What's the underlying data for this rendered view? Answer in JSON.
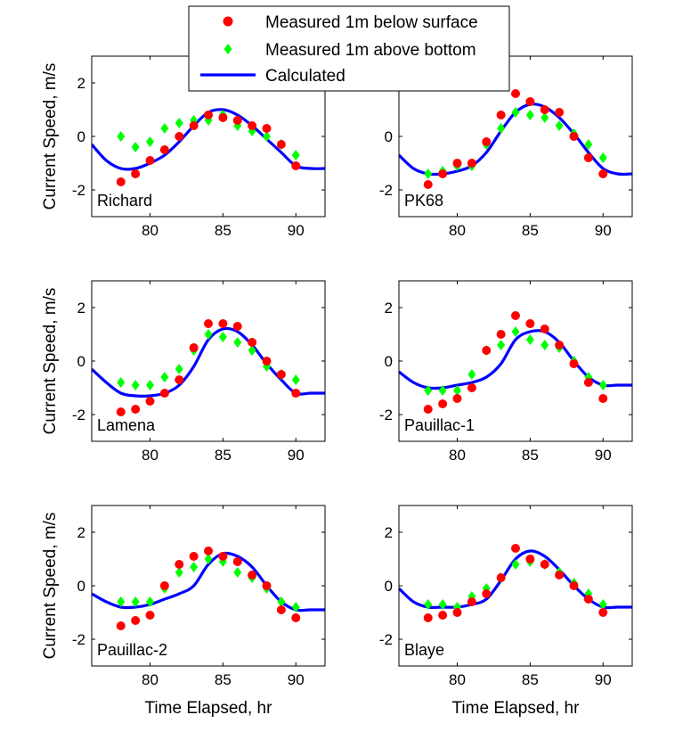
{
  "legend": {
    "placement": "top-center",
    "entries": [
      {
        "label": "Measured 1m below surface",
        "marker": "circle",
        "color": "#ff0000"
      },
      {
        "label": "Measured 1m above bottom",
        "marker": "diamond",
        "color": "#00ff00"
      },
      {
        "label": "Calculated",
        "marker": "line",
        "color": "#0000ff"
      }
    ]
  },
  "chart_data": [
    {
      "type": "scatter",
      "station": "Richard",
      "xlabel": "",
      "ylabel": "Current Speed, m/s",
      "xlim": [
        76,
        92
      ],
      "ylim": [
        -3,
        3
      ],
      "xticks": [
        80,
        85,
        90
      ],
      "yticks": [
        -2,
        0,
        2
      ],
      "series": [
        {
          "name": "Measured 1m below surface",
          "x": [
            78,
            79,
            80,
            81,
            82,
            83,
            84,
            85,
            86,
            87,
            88,
            89,
            90
          ],
          "y": [
            -1.7,
            -1.4,
            -0.9,
            -0.5,
            0.0,
            0.4,
            0.8,
            0.7,
            0.6,
            0.4,
            0.3,
            -0.3,
            -1.1
          ]
        },
        {
          "name": "Measured 1m above bottom",
          "x": [
            78,
            79,
            80,
            81,
            82,
            83,
            84,
            85,
            86,
            87,
            88,
            89,
            90
          ],
          "y": [
            0.0,
            -0.4,
            -0.2,
            0.3,
            0.5,
            0.6,
            0.6,
            0.8,
            0.4,
            0.2,
            0.0,
            -0.3,
            -0.7
          ]
        },
        {
          "name": "Calculated",
          "x": [
            76,
            77,
            78,
            79,
            80,
            81,
            82,
            83,
            84,
            85,
            86,
            87,
            88,
            89,
            90,
            91,
            92
          ],
          "y": [
            -0.3,
            -0.9,
            -1.2,
            -1.2,
            -1.0,
            -0.7,
            -0.2,
            0.4,
            0.9,
            1.0,
            0.8,
            0.4,
            -0.1,
            -0.6,
            -1.1,
            -1.2,
            -1.2
          ]
        }
      ]
    },
    {
      "type": "scatter",
      "station": "PK68",
      "xlabel": "",
      "ylabel": "",
      "xlim": [
        76,
        92
      ],
      "ylim": [
        -3,
        3
      ],
      "xticks": [
        80,
        85,
        90
      ],
      "yticks": [
        -2,
        0
      ],
      "series": [
        {
          "name": "Measured 1m below surface",
          "x": [
            78,
            79,
            80,
            81,
            82,
            83,
            84,
            85,
            86,
            87,
            88,
            89,
            90
          ],
          "y": [
            -1.8,
            -1.4,
            -1.0,
            -1.0,
            -0.2,
            0.8,
            1.6,
            1.3,
            1.0,
            0.9,
            0.0,
            -0.8,
            -1.4
          ]
        },
        {
          "name": "Measured 1m above bottom",
          "x": [
            78,
            79,
            80,
            81,
            82,
            83,
            84,
            85,
            86,
            87,
            88,
            89,
            90
          ],
          "y": [
            -1.4,
            -1.3,
            -1.1,
            -1.1,
            -0.3,
            0.3,
            0.9,
            0.8,
            0.7,
            0.4,
            0.1,
            -0.3,
            -0.8
          ]
        },
        {
          "name": "Calculated",
          "x": [
            76,
            77,
            78,
            79,
            80,
            81,
            82,
            83,
            84,
            85,
            86,
            87,
            88,
            89,
            90,
            91,
            92
          ],
          "y": [
            -0.7,
            -1.2,
            -1.4,
            -1.4,
            -1.3,
            -1.1,
            -0.6,
            0.2,
            0.9,
            1.2,
            1.1,
            0.7,
            0.1,
            -0.6,
            -1.2,
            -1.4,
            -1.4
          ]
        }
      ]
    },
    {
      "type": "scatter",
      "station": "Lamena",
      "xlabel": "",
      "ylabel": "Current Speed, m/s",
      "xlim": [
        76,
        92
      ],
      "ylim": [
        -3,
        3
      ],
      "xticks": [
        80,
        85,
        90
      ],
      "yticks": [
        -2,
        0,
        2
      ],
      "series": [
        {
          "name": "Measured 1m below surface",
          "x": [
            78,
            79,
            80,
            81,
            82,
            83,
            84,
            85,
            86,
            87,
            88,
            89,
            90
          ],
          "y": [
            -1.9,
            -1.8,
            -1.5,
            -1.2,
            -0.7,
            0.5,
            1.4,
            1.4,
            1.3,
            0.7,
            0.0,
            -0.5,
            -1.2
          ]
        },
        {
          "name": "Measured 1m above bottom",
          "x": [
            78,
            79,
            80,
            81,
            82,
            83,
            84,
            85,
            86,
            87,
            88,
            89,
            90
          ],
          "y": [
            -0.8,
            -0.9,
            -0.9,
            -0.6,
            -0.3,
            0.4,
            1.0,
            0.9,
            0.7,
            0.4,
            -0.2,
            -0.5,
            -0.7
          ]
        },
        {
          "name": "Calculated",
          "x": [
            76,
            77,
            78,
            79,
            80,
            81,
            82,
            83,
            84,
            85,
            86,
            87,
            88,
            89,
            90,
            91,
            92
          ],
          "y": [
            -0.3,
            -0.8,
            -1.2,
            -1.3,
            -1.3,
            -1.2,
            -0.9,
            -0.2,
            0.8,
            1.2,
            1.1,
            0.6,
            -0.1,
            -0.7,
            -1.2,
            -1.2,
            -1.2
          ]
        }
      ]
    },
    {
      "type": "scatter",
      "station": "Pauillac-1",
      "xlabel": "",
      "ylabel": "",
      "xlim": [
        76,
        92
      ],
      "ylim": [
        -3,
        3
      ],
      "xticks": [
        80,
        85,
        90
      ],
      "yticks": [
        -2,
        0,
        2
      ],
      "series": [
        {
          "name": "Measured 1m below surface",
          "x": [
            78,
            79,
            80,
            81,
            82,
            83,
            84,
            85,
            86,
            87,
            88,
            89,
            90
          ],
          "y": [
            -1.8,
            -1.6,
            -1.4,
            -1.0,
            0.4,
            1.0,
            1.7,
            1.4,
            1.2,
            0.6,
            -0.1,
            -0.8,
            -1.4
          ]
        },
        {
          "name": "Measured 1m above bottom",
          "x": [
            78,
            79,
            80,
            81,
            82,
            83,
            84,
            85,
            86,
            87,
            88,
            89,
            90
          ],
          "y": [
            -1.1,
            -1.1,
            -1.1,
            -0.5,
            0.4,
            0.6,
            1.1,
            0.8,
            0.6,
            0.5,
            0.0,
            -0.6,
            -0.9
          ]
        },
        {
          "name": "Calculated",
          "x": [
            76,
            77,
            78,
            79,
            80,
            81,
            82,
            83,
            84,
            85,
            86,
            87,
            88,
            89,
            90,
            91,
            92
          ],
          "y": [
            -0.4,
            -0.8,
            -1.0,
            -1.0,
            -0.9,
            -0.8,
            -0.6,
            -0.1,
            0.8,
            1.1,
            1.1,
            0.7,
            0.0,
            -0.6,
            -0.9,
            -0.9,
            -0.9
          ]
        }
      ]
    },
    {
      "type": "scatter",
      "station": "Pauillac-2",
      "xlabel": "Time Elapsed, hr",
      "ylabel": "Current Speed, m/s",
      "xlim": [
        76,
        92
      ],
      "ylim": [
        -3,
        3
      ],
      "xticks": [
        80,
        85,
        90
      ],
      "yticks": [
        -2,
        0,
        2
      ],
      "series": [
        {
          "name": "Measured 1m below surface",
          "x": [
            78,
            79,
            80,
            81,
            82,
            83,
            84,
            85,
            86,
            87,
            88,
            89,
            90
          ],
          "y": [
            -1.5,
            -1.3,
            -1.1,
            0.0,
            0.8,
            1.1,
            1.3,
            1.1,
            0.9,
            0.4,
            0.0,
            -0.9,
            -1.2
          ]
        },
        {
          "name": "Measured 1m above bottom",
          "x": [
            78,
            79,
            80,
            81,
            82,
            83,
            84,
            85,
            86,
            87,
            88,
            89,
            90
          ],
          "y": [
            -0.6,
            -0.6,
            -0.6,
            -0.1,
            0.5,
            0.7,
            1.0,
            0.9,
            0.5,
            0.3,
            -0.1,
            -0.6,
            -0.8
          ]
        },
        {
          "name": "Calculated",
          "x": [
            76,
            77,
            78,
            79,
            80,
            81,
            82,
            83,
            84,
            85,
            86,
            87,
            88,
            89,
            90,
            91,
            92
          ],
          "y": [
            -0.3,
            -0.6,
            -0.8,
            -0.8,
            -0.7,
            -0.5,
            -0.3,
            0.0,
            0.8,
            1.2,
            1.1,
            0.7,
            0.0,
            -0.6,
            -0.9,
            -0.9,
            -0.9
          ]
        }
      ]
    },
    {
      "type": "scatter",
      "station": "Blaye",
      "xlabel": "Time Elapsed, hr",
      "ylabel": "",
      "xlim": [
        76,
        92
      ],
      "ylim": [
        -3,
        3
      ],
      "xticks": [
        80,
        85,
        90
      ],
      "yticks": [
        -2,
        0,
        2
      ],
      "series": [
        {
          "name": "Measured 1m below surface",
          "x": [
            78,
            79,
            80,
            81,
            82,
            83,
            84,
            85,
            86,
            87,
            88,
            89,
            90
          ],
          "y": [
            -1.2,
            -1.1,
            -1.0,
            -0.6,
            -0.3,
            0.3,
            1.4,
            1.0,
            0.8,
            0.4,
            0.0,
            -0.5,
            -1.0
          ]
        },
        {
          "name": "Measured 1m above bottom",
          "x": [
            78,
            79,
            80,
            81,
            82,
            83,
            84,
            85,
            86,
            87,
            88,
            89,
            90
          ],
          "y": [
            -0.7,
            -0.7,
            -0.8,
            -0.4,
            -0.1,
            0.3,
            0.8,
            0.9,
            0.8,
            0.5,
            0.1,
            -0.3,
            -0.7
          ]
        },
        {
          "name": "Calculated",
          "x": [
            76,
            77,
            78,
            79,
            80,
            81,
            82,
            83,
            84,
            85,
            86,
            87,
            88,
            89,
            90,
            91,
            92
          ],
          "y": [
            -0.1,
            -0.6,
            -0.8,
            -0.8,
            -0.8,
            -0.7,
            -0.5,
            0.2,
            1.0,
            1.3,
            1.1,
            0.6,
            0.0,
            -0.5,
            -0.8,
            -0.8,
            -0.8
          ]
        }
      ]
    }
  ]
}
